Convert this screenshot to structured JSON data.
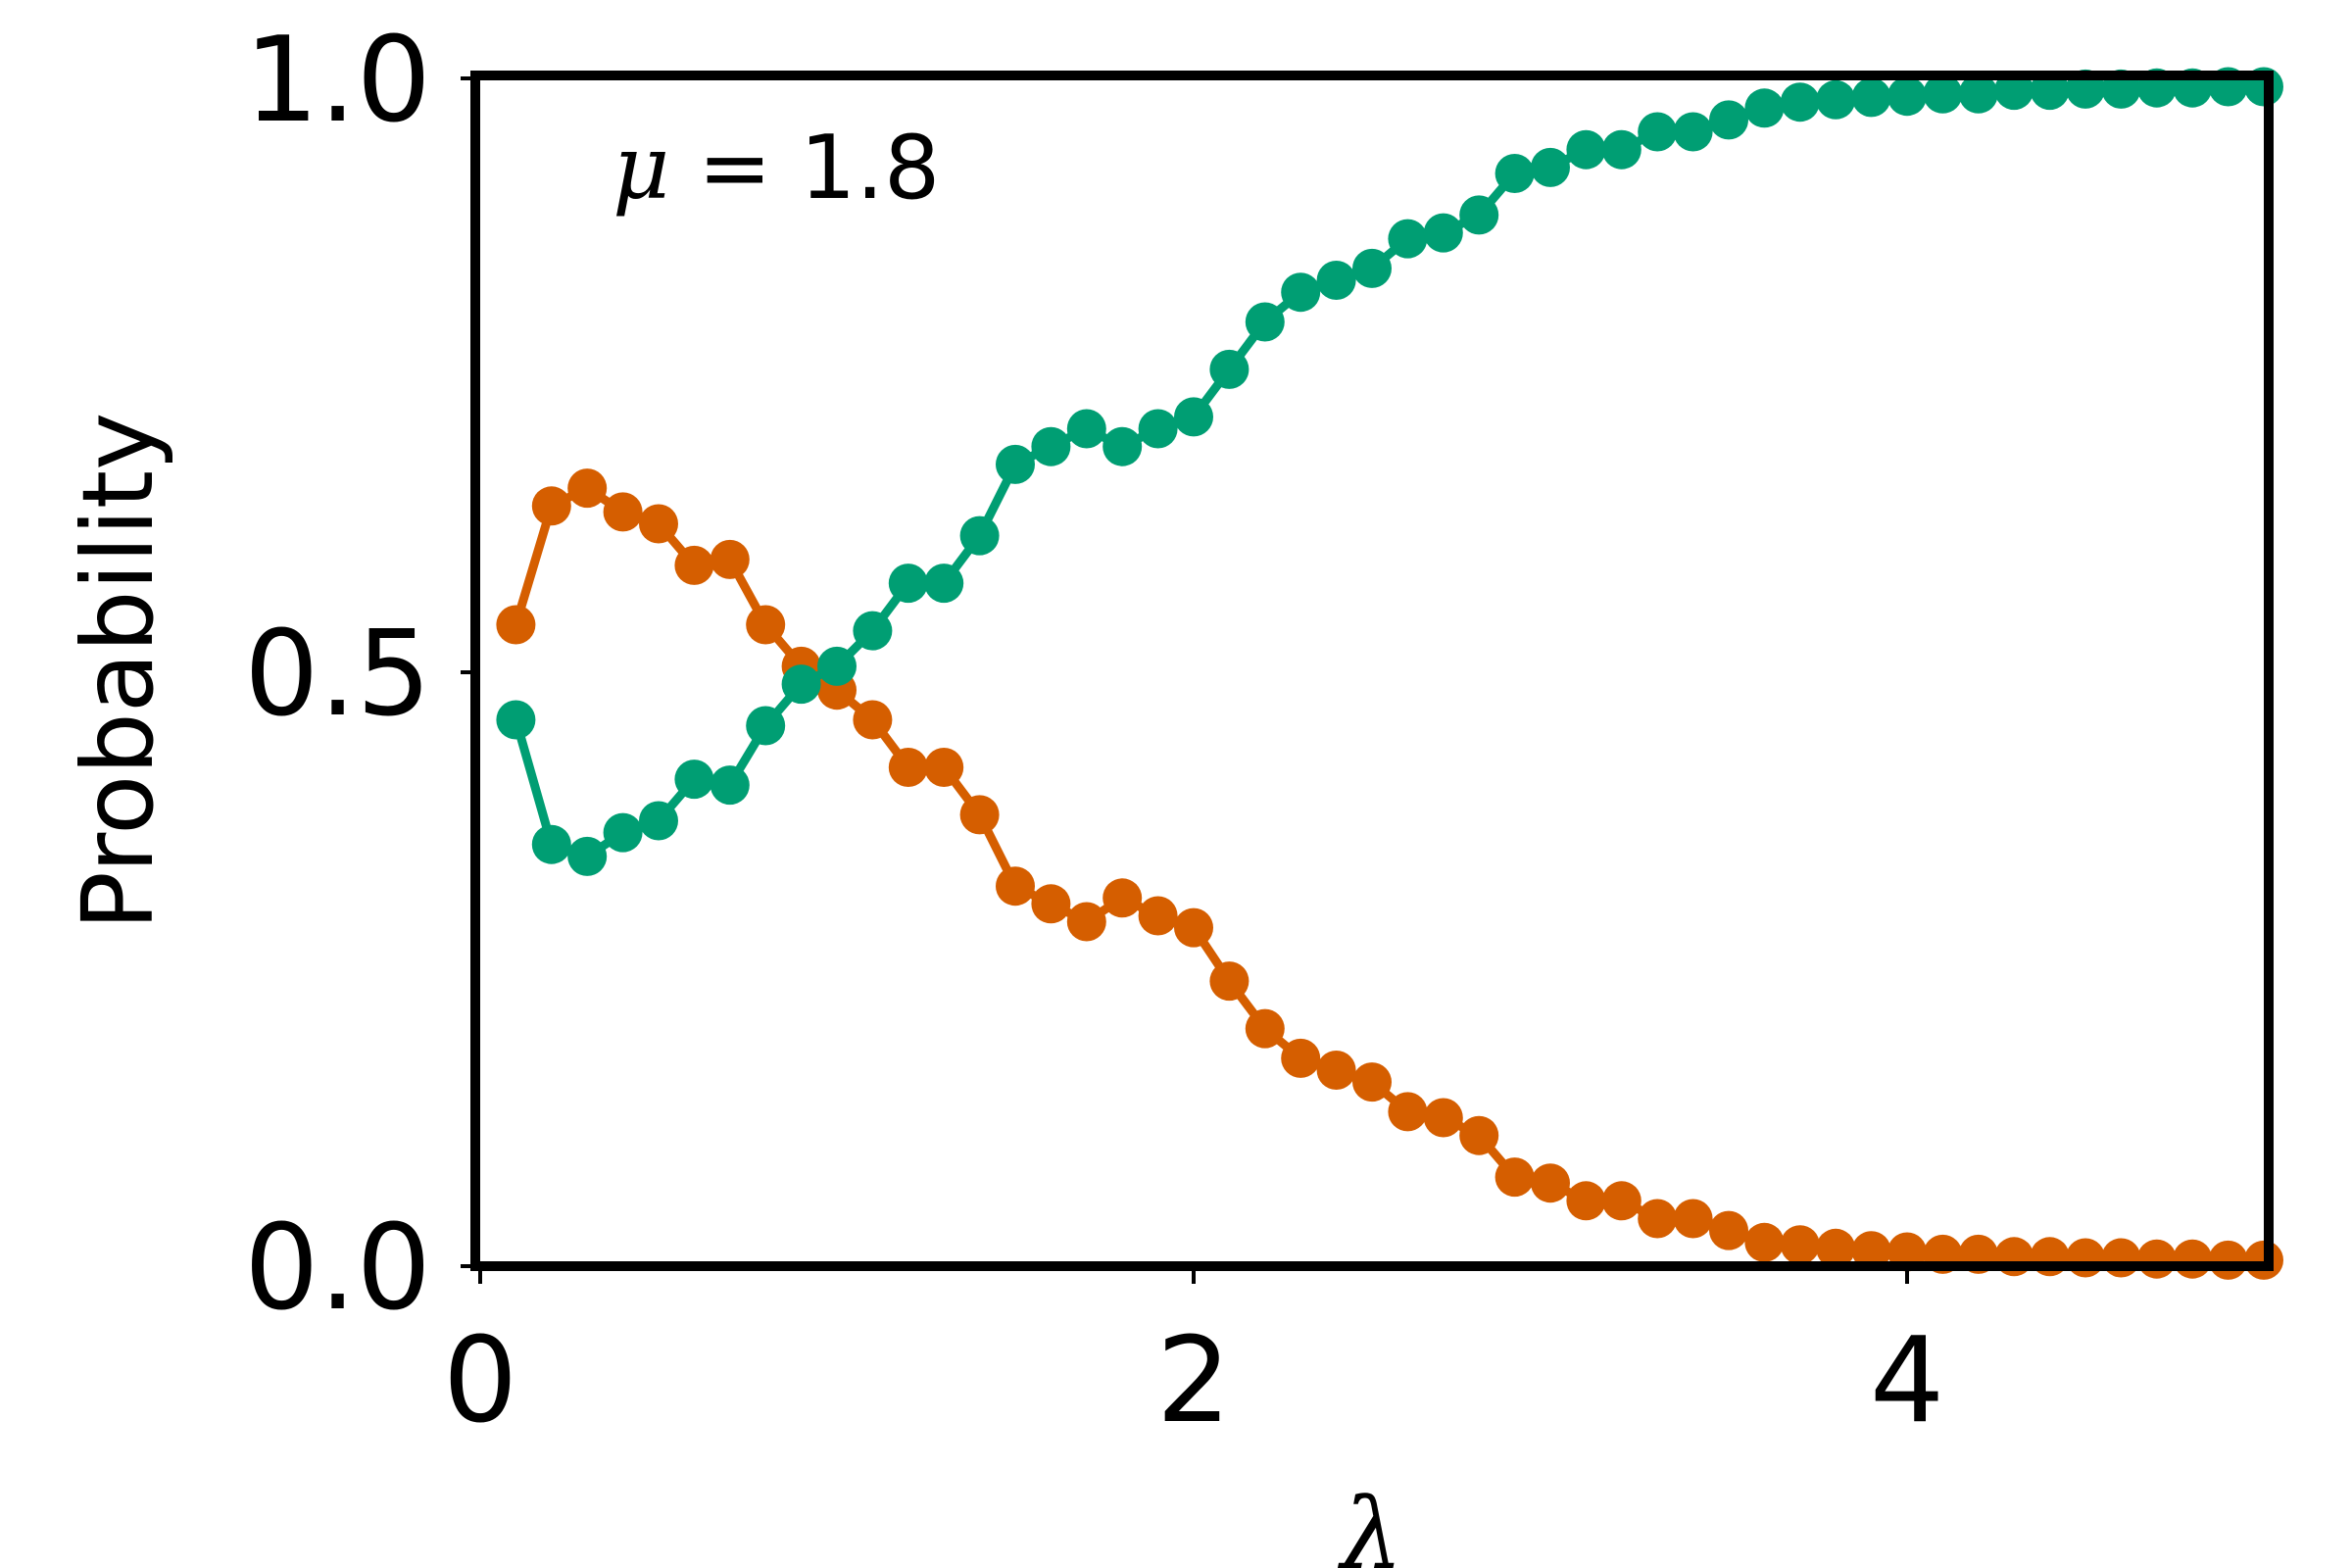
{
  "chart_data": {
    "type": "line",
    "xlabel": "λ",
    "ylabel": "Probability",
    "xlim": [
      0,
      5
    ],
    "ylim": [
      0,
      1
    ],
    "xticks": [
      0,
      2,
      4
    ],
    "xtick_labels": [
      "0",
      "2",
      "4"
    ],
    "yticks": [
      0.0,
      0.5,
      1.0
    ],
    "ytick_labels": [
      "0.0",
      "0.5",
      "1.0"
    ],
    "grid": false,
    "annotation": {
      "symbol": "μ",
      "text": " = 1.8"
    },
    "x": [
      0.1,
      0.2,
      0.3,
      0.4,
      0.5,
      0.6,
      0.7,
      0.8,
      0.9,
      1.0,
      1.1,
      1.2,
      1.3,
      1.4,
      1.5,
      1.6,
      1.7,
      1.8,
      1.9,
      2.0,
      2.1,
      2.2,
      2.3,
      2.4,
      2.5,
      2.6,
      2.7,
      2.8,
      2.9,
      3.0,
      3.1,
      3.2,
      3.3,
      3.4,
      3.5,
      3.6,
      3.7,
      3.8,
      3.9,
      4.0,
      4.1,
      4.2,
      4.3,
      4.4,
      4.5,
      4.6,
      4.7,
      4.8,
      4.9,
      5.0
    ],
    "series": [
      {
        "color": "#d55e00",
        "values": [
          0.54,
          0.64,
          0.655,
          0.635,
          0.625,
          0.59,
          0.595,
          0.54,
          0.505,
          0.485,
          0.46,
          0.42,
          0.42,
          0.38,
          0.32,
          0.305,
          0.29,
          0.31,
          0.295,
          0.285,
          0.24,
          0.2,
          0.175,
          0.165,
          0.155,
          0.13,
          0.125,
          0.11,
          0.075,
          0.07,
          0.055,
          0.055,
          0.04,
          0.04,
          0.03,
          0.02,
          0.018,
          0.015,
          0.013,
          0.012,
          0.01,
          0.01,
          0.008,
          0.008,
          0.007,
          0.007,
          0.006,
          0.006,
          0.005,
          0.005
        ]
      },
      {
        "color": "#009e73",
        "values": [
          0.46,
          0.355,
          0.345,
          0.365,
          0.375,
          0.41,
          0.405,
          0.455,
          0.49,
          0.505,
          0.535,
          0.575,
          0.575,
          0.615,
          0.675,
          0.69,
          0.705,
          0.69,
          0.705,
          0.715,
          0.755,
          0.795,
          0.82,
          0.83,
          0.84,
          0.865,
          0.87,
          0.885,
          0.92,
          0.925,
          0.94,
          0.94,
          0.955,
          0.955,
          0.965,
          0.975,
          0.98,
          0.982,
          0.984,
          0.985,
          0.987,
          0.987,
          0.99,
          0.99,
          0.991,
          0.991,
          0.992,
          0.992,
          0.993,
          0.993
        ]
      }
    ]
  }
}
